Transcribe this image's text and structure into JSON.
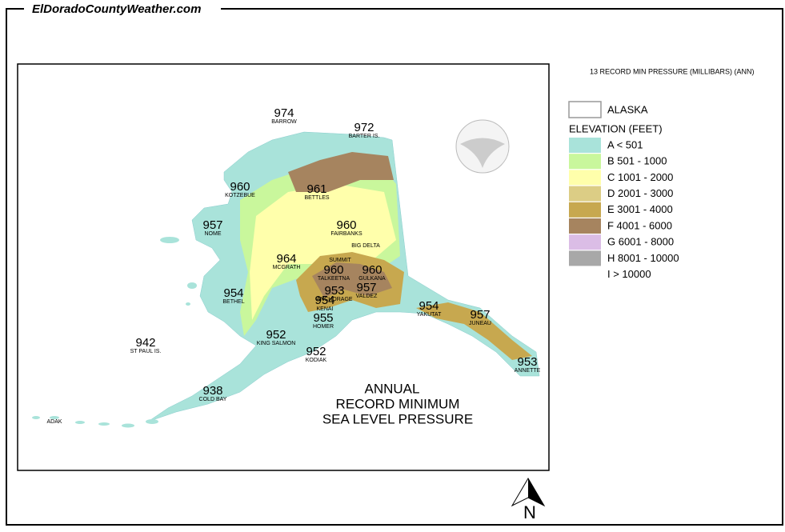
{
  "header": {
    "site": "ElDoradoCountyWeather.com"
  },
  "map": {
    "title": [
      "ANNUAL",
      "RECORD MINIMUM",
      "SEA LEVEL PRESSURE"
    ],
    "stations": [
      {
        "value": "974",
        "name": "BARROW"
      },
      {
        "value": "972",
        "name": "BARTER IS."
      },
      {
        "value": "960",
        "name": "KOTZEBUE"
      },
      {
        "value": "961",
        "name": "BETTLES"
      },
      {
        "value": "957",
        "name": "NOME"
      },
      {
        "value": "960",
        "name": "FAIRBANKS"
      },
      {
        "name": "BIG DELTA"
      },
      {
        "name": "SUMMIT"
      },
      {
        "value": "964",
        "name": "MCGRATH"
      },
      {
        "value": "960",
        "name": "TALKEETNA"
      },
      {
        "value": "960",
        "name": "GULKANA"
      },
      {
        "value": "953",
        "name": "ANCHORAGE"
      },
      {
        "value": "957",
        "name": "VALDEZ"
      },
      {
        "value": "954",
        "name": "KENAI"
      },
      {
        "value": "955",
        "name": "HOMER"
      },
      {
        "value": "954",
        "name": "BETHEL"
      },
      {
        "value": "954",
        "name": "YAKUTAT"
      },
      {
        "value": "957",
        "name": "JUNEAU"
      },
      {
        "value": "952",
        "name": "KING SALMON"
      },
      {
        "value": "952",
        "name": "KODIAK"
      },
      {
        "value": "942",
        "name": "ST PAUL IS."
      },
      {
        "value": "953",
        "name": "ANNETTE"
      },
      {
        "value": "938",
        "name": "COLD BAY"
      },
      {
        "name": "ADAK"
      }
    ],
    "north": "N"
  },
  "legend": {
    "caption": "13 RECORD MIN PRESSURE (MILLIBARS) (ANN)",
    "region": "ALASKA",
    "heading": "ELEVATION (FEET)",
    "items": [
      {
        "label": "A < 501",
        "color": "#a9e3da"
      },
      {
        "label": "B 501 - 1000",
        "color": "#c9f79c"
      },
      {
        "label": "C 1001 - 2000",
        "color": "#ffffab"
      },
      {
        "label": "D 2001 - 3000",
        "color": "#dccd85"
      },
      {
        "label": "E 3001 - 4000",
        "color": "#c7a84f"
      },
      {
        "label": "F 4001 - 6000",
        "color": "#a6845f"
      },
      {
        "label": "G 6001 - 8000",
        "color": "#dbbde6"
      },
      {
        "label": "H 8001 - 10000",
        "color": "#a8a8a8"
      },
      {
        "label": "I > 10000"
      }
    ]
  }
}
